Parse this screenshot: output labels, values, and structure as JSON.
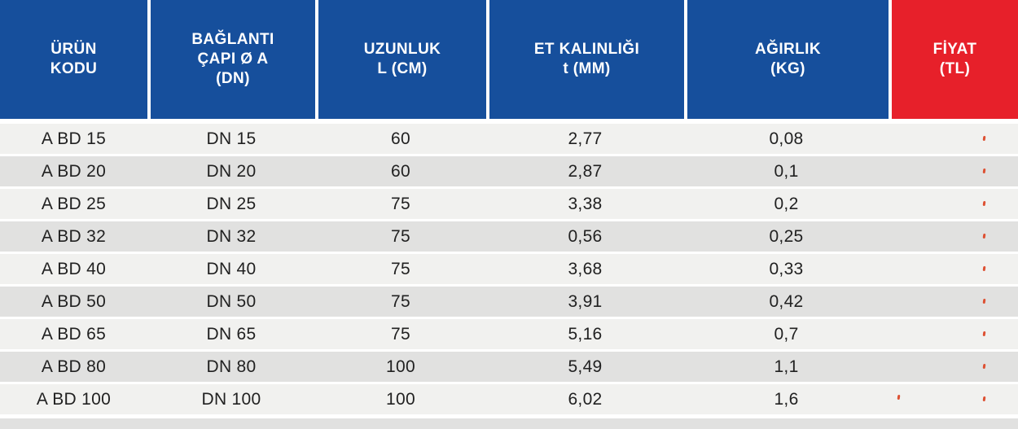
{
  "table": {
    "columns": [
      {
        "id": "urun_kodu",
        "label": "ÜRÜN\nKODU"
      },
      {
        "id": "baglanti_capi",
        "label": "BAĞLANTI\nÇAPI  Ø A\n(DN)"
      },
      {
        "id": "uzunluk",
        "label": "UZUNLUK\nL (CM)"
      },
      {
        "id": "et_kalinligi",
        "label": "ET KALINLIĞI\nt (MM)"
      },
      {
        "id": "agirlik",
        "label": "AĞIRLIK\n(KG)"
      },
      {
        "id": "fiyat",
        "label": "FİYAT\n(TL)"
      }
    ],
    "rows": [
      {
        "code": "A BD 15",
        "dn": "DN 15",
        "length_cm": "60",
        "thickness_mm": "2,77",
        "weight_kg": "0,08",
        "price_tl": ""
      },
      {
        "code": "A BD 20",
        "dn": "DN 20",
        "length_cm": "60",
        "thickness_mm": "2,87",
        "weight_kg": "0,1",
        "price_tl": ""
      },
      {
        "code": "A BD 25",
        "dn": "DN 25",
        "length_cm": "75",
        "thickness_mm": "3,38",
        "weight_kg": "0,2",
        "price_tl": ""
      },
      {
        "code": "A BD 32",
        "dn": "DN 32",
        "length_cm": "75",
        "thickness_mm": "0,56",
        "weight_kg": "0,25",
        "price_tl": ""
      },
      {
        "code": "A BD 40",
        "dn": "DN 40",
        "length_cm": "75",
        "thickness_mm": "3,68",
        "weight_kg": "0,33",
        "price_tl": ""
      },
      {
        "code": "A BD 50",
        "dn": "DN 50",
        "length_cm": "75",
        "thickness_mm": "3,91",
        "weight_kg": "0,42",
        "price_tl": ""
      },
      {
        "code": "A BD 65",
        "dn": "DN 65",
        "length_cm": "75",
        "thickness_mm": "5,16",
        "weight_kg": "0,7",
        "price_tl": ""
      },
      {
        "code": "A BD 80",
        "dn": "DN 80",
        "length_cm": "100",
        "thickness_mm": "5,49",
        "weight_kg": "1,1",
        "price_tl": ""
      },
      {
        "code": "A BD 100",
        "dn": "DN 100",
        "length_cm": "100",
        "thickness_mm": "6,02",
        "weight_kg": "1,6",
        "price_tl": ""
      }
    ],
    "colors": {
      "header_blue": "#164f9c",
      "header_red": "#e7202a",
      "row_light": "#f1f1ef",
      "row_dark": "#e1e1e0",
      "text_dark": "#212121",
      "mark_red": "#dd5133"
    }
  }
}
